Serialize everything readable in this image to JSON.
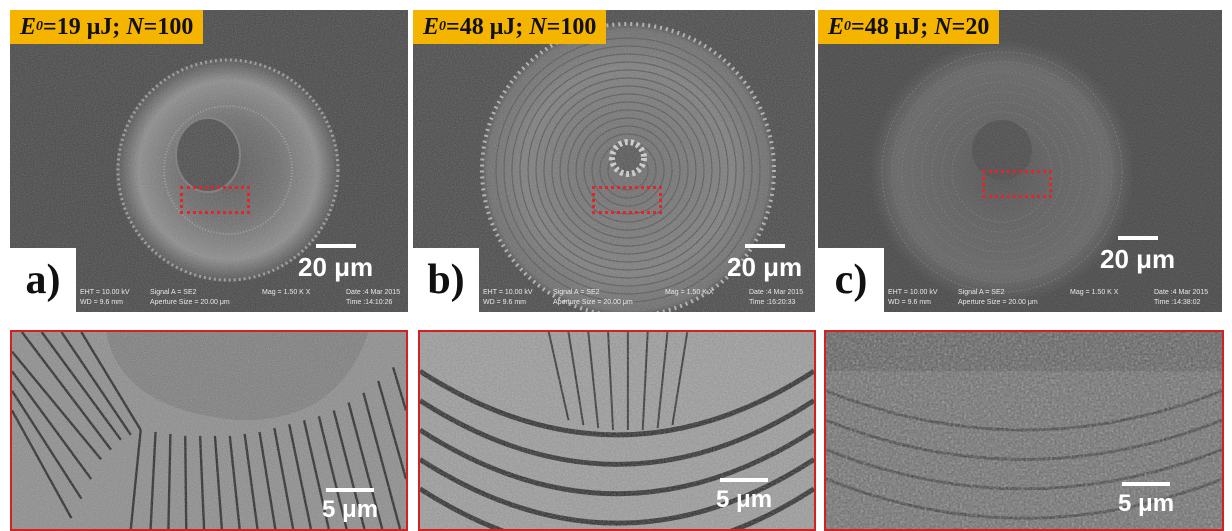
{
  "panels": [
    {
      "energy_symbol": "E",
      "energy_sub": "0",
      "energy_value": "=19 μJ; ",
      "n_symbol": "N",
      "n_value": "=100",
      "letter": "a)",
      "scale": "20 μm",
      "footer": {
        "eht": "EHT = 10.00 kV",
        "wd": "WD = 9.6 mm",
        "signal": "Signal A = SE2",
        "aperture": "Aperture Size = 20.00 μm",
        "mag": "Mag = 1.50 K X",
        "date": "Date :4 Mar 2015",
        "time": "Time :14:10:26"
      }
    },
    {
      "energy_symbol": "E",
      "energy_sub": "0",
      "energy_value": "=48 μJ; ",
      "n_symbol": "N",
      "n_value": "=100",
      "letter": "b)",
      "scale": "20 μm",
      "footer": {
        "eht": "EHT = 10.00 kV",
        "wd": "WD = 9.6 mm",
        "signal": "Signal A = SE2",
        "aperture": "Aperture Size = 20.00 μm",
        "mag": "Mag = 1.50 K X",
        "date": "Date :4 Mar 2015",
        "time": "Time :16:20:33"
      }
    },
    {
      "energy_symbol": "E",
      "energy_sub": "0",
      "energy_value": "=48 μJ; ",
      "n_symbol": "N",
      "n_value": "=20",
      "letter": "c)",
      "scale": "20 μm",
      "footer": {
        "eht": "EHT = 10.00 kV",
        "wd": "WD = 9.6 mm",
        "signal": "Signal A = SE2",
        "aperture": "Aperture Size = 20.00 μm",
        "mag": "Mag = 1.50 K X",
        "date": "Date :4 Mar 2015",
        "time": "Time :14:38:02"
      }
    }
  ],
  "zooms": [
    {
      "scale": "5 μm"
    },
    {
      "scale": "5 μm"
    },
    {
      "scale": "5 μm"
    }
  ],
  "colors": {
    "title_box": "#f5b400",
    "roi": "#e0262a",
    "zoom_border": "#d42020",
    "sem_background": "#3f3f3f"
  }
}
